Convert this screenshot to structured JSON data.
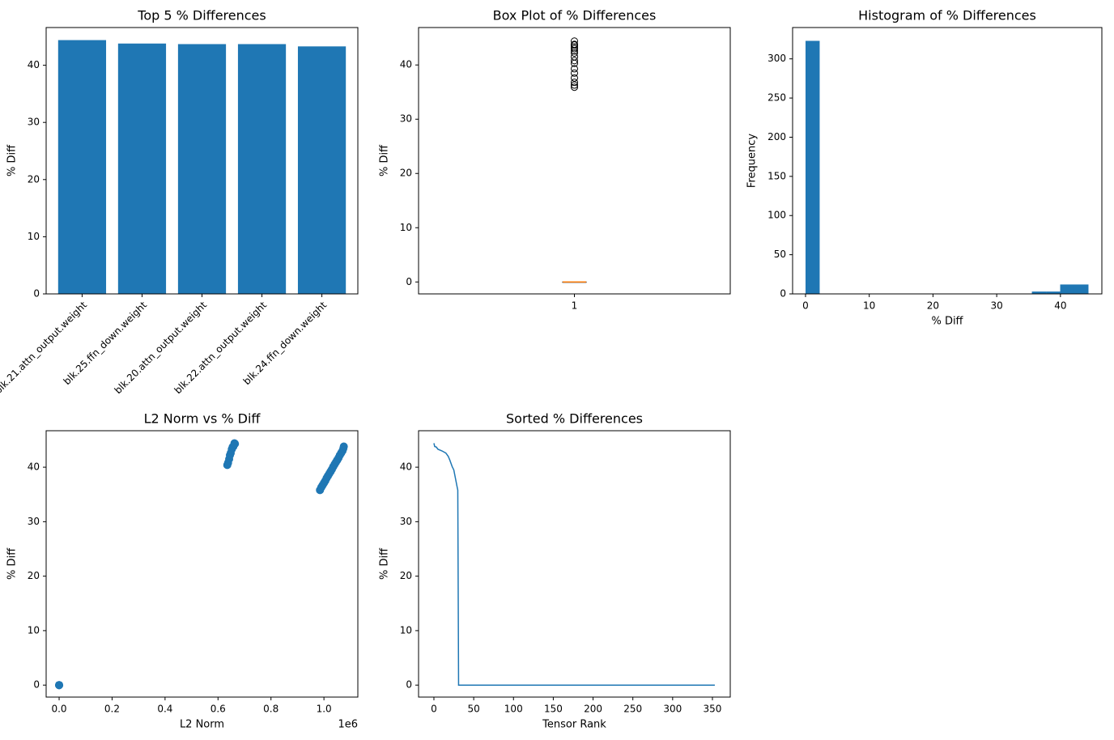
{
  "chart_data": [
    {
      "type": "bar",
      "title": "Top 5 % Differences",
      "ylabel": "% Diff",
      "categories": [
        "blk.21.attn_output.weight",
        "blk.25.ffn_down.weight",
        "blk.20.attn_output.weight",
        "blk.22.attn_output.weight",
        "blk.24.ffn_down.weight"
      ],
      "values": [
        44.4,
        43.8,
        43.7,
        43.7,
        43.3
      ],
      "color": "#1f77b4",
      "ylim": [
        0,
        46.6
      ],
      "yticks": [
        0,
        10,
        20,
        30,
        40
      ]
    },
    {
      "type": "box",
      "title": "Box Plot of % Differences",
      "ylabel": "% Diff",
      "categories": [
        "1"
      ],
      "boxes": [
        {
          "whisker_low": 0,
          "q1": 0,
          "median": 0,
          "q3": 0,
          "whisker_high": 0,
          "outliers": [
            44.4,
            43.8,
            43.7,
            43.7,
            43.3,
            43.0,
            42.6,
            42.2,
            41.5,
            40.8,
            40.3,
            39.3,
            38.5,
            37.6,
            36.8,
            36.3,
            35.9
          ]
        }
      ],
      "color": "#000000",
      "median_color": "#ff7f0e",
      "xlim": [
        0.5,
        1.5
      ],
      "ylim": [
        -2.2,
        46.9
      ],
      "yticks": [
        0,
        10,
        20,
        30,
        40
      ]
    },
    {
      "type": "histogram",
      "title": "Histogram of % Differences",
      "xlabel": "% Diff",
      "ylabel": "Frequency",
      "bins": [
        0,
        2.22,
        4.44,
        6.66,
        8.88,
        11.1,
        13.32,
        15.54,
        17.76,
        19.98,
        22.2,
        24.42,
        26.64,
        28.86,
        31.08,
        33.3,
        35.52,
        37.74,
        39.96,
        42.18,
        44.4
      ],
      "values": [
        323,
        0,
        0,
        0,
        0,
        0,
        0,
        0,
        0,
        0,
        0,
        0,
        0,
        0,
        0,
        0,
        3,
        3,
        12,
        12
      ],
      "color": "#1f77b4",
      "xlim": [
        -2.03,
        46.5
      ],
      "xticks": [
        0,
        10,
        20,
        30,
        40
      ],
      "ylim": [
        0,
        340
      ],
      "yticks": [
        0,
        50,
        100,
        150,
        200,
        250,
        300
      ]
    },
    {
      "type": "scatter",
      "title": "L2 Norm vs % Diff",
      "xlabel": "L2 Norm",
      "ylabel": "% Diff",
      "x_offset_label": "1e6",
      "x": [
        0,
        0,
        0,
        0.635,
        0.638,
        0.642,
        0.645,
        0.648,
        0.652,
        0.655,
        0.658,
        0.662,
        0.664,
        0.985,
        0.99,
        0.995,
        1.0,
        1.005,
        1.01,
        1.015,
        1.02,
        1.025,
        1.03,
        1.035,
        1.04,
        1.045,
        1.05,
        1.055,
        1.06,
        1.065,
        1.07,
        1.073,
        1.075
      ],
      "values": [
        0,
        0,
        0,
        40.4,
        40.8,
        41.5,
        42.2,
        42.6,
        43.3,
        43.7,
        43.8,
        44.4,
        44.3,
        35.8,
        36.3,
        36.7,
        37.1,
        37.5,
        38.0,
        38.4,
        38.8,
        39.2,
        39.6,
        40.1,
        40.5,
        40.9,
        41.3,
        41.7,
        42.2,
        42.6,
        43.0,
        43.4,
        43.8
      ],
      "color": "#1f77b4",
      "xlim": [
        -0.049,
        1.128
      ],
      "xticks": [
        {
          "value": 0,
          "label": "0.0"
        },
        {
          "value": 0.2,
          "label": "0.2"
        },
        {
          "value": 0.4,
          "label": "0.4"
        },
        {
          "value": 0.6,
          "label": "0.6"
        },
        {
          "value": 0.8,
          "label": "0.8"
        },
        {
          "value": 1,
          "label": "1.0"
        }
      ],
      "ylim": [
        -2.2,
        46.7
      ],
      "yticks": [
        0,
        10,
        20,
        30,
        40
      ]
    },
    {
      "type": "line",
      "title": "Sorted % Differences",
      "xlabel": "Tensor Rank",
      "ylabel": "% Diff",
      "x": [
        0,
        1,
        3,
        5,
        10,
        15,
        18,
        20,
        22,
        23,
        25,
        27,
        29,
        30,
        31,
        353
      ],
      "values": [
        44.4,
        43.8,
        43.7,
        43.3,
        43.0,
        42.6,
        42.0,
        41.3,
        40.5,
        40.1,
        39.5,
        38.0,
        36.5,
        35.8,
        0,
        0
      ],
      "color": "#1f77b4",
      "xlim": [
        -19.3,
        372.4
      ],
      "xticks": [
        0,
        50,
        100,
        150,
        200,
        250,
        300,
        350
      ],
      "ylim": [
        -2.2,
        46.7
      ],
      "yticks": [
        0,
        10,
        20,
        30,
        40
      ]
    }
  ]
}
